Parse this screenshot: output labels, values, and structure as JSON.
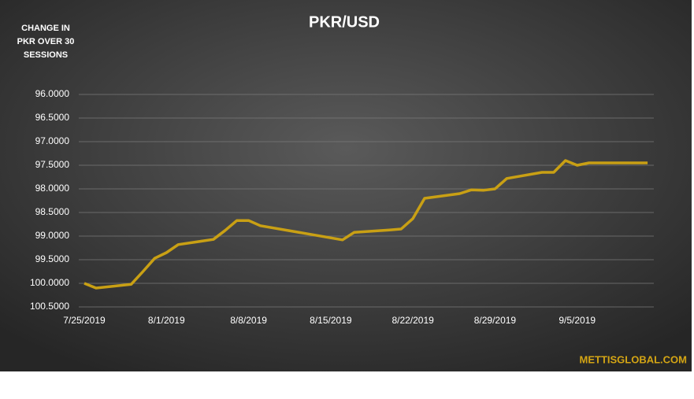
{
  "chart_data": {
    "type": "line",
    "title": "PKR/USD",
    "ylabel_lines": [
      "CHANGE IN",
      "PKR OVER 30",
      "SESSIONS"
    ],
    "credit": "METTISGLOBAL.COM",
    "x": [
      "7/25/2019",
      "7/26/2019",
      "7/29/2019",
      "7/30/2019",
      "7/31/2019",
      "8/1/2019",
      "8/2/2019",
      "8/5/2019",
      "8/6/2019",
      "8/7/2019",
      "8/8/2019",
      "8/9/2019",
      "8/16/2019",
      "8/17/2019",
      "8/20/2019",
      "8/21/2019",
      "8/22/2019",
      "8/23/2019",
      "8/26/2019",
      "8/27/2019",
      "8/28/2019",
      "8/29/2019",
      "8/30/2019",
      "9/2/2019",
      "9/3/2019",
      "9/4/2019",
      "9/5/2019",
      "9/6/2019",
      "9/9/2019",
      "9/10/2019",
      "9/11/2019"
    ],
    "series": [
      {
        "name": "PKR/USD",
        "color": "#c9a014",
        "values": [
          100.0,
          100.1,
          100.02,
          99.75,
          99.47,
          99.35,
          99.18,
          99.07,
          98.88,
          98.67,
          98.67,
          98.78,
          99.08,
          98.92,
          98.87,
          98.85,
          98.63,
          98.2,
          98.1,
          98.02,
          98.03,
          98.0,
          97.78,
          97.65,
          97.65,
          97.4,
          97.5,
          97.45,
          97.45,
          97.45,
          97.45
        ]
      }
    ],
    "xlim": [
      "7/25/2019",
      "9/12/2019"
    ],
    "xticks": [
      "7/25/2019",
      "8/1/2019",
      "8/8/2019",
      "8/15/2019",
      "8/22/2019",
      "8/29/2019",
      "9/5/2019"
    ],
    "ylim": [
      96,
      100.5
    ],
    "y_inverted": true,
    "yticks": [
      {
        "value": 96,
        "label": "96.0000"
      },
      {
        "value": 96.5,
        "label": "96.5000"
      },
      {
        "value": 97,
        "label": "97.0000"
      },
      {
        "value": 97.5,
        "label": "97.5000"
      },
      {
        "value": 98,
        "label": "98.0000"
      },
      {
        "value": 98.5,
        "label": "98.5000"
      },
      {
        "value": 99,
        "label": "99.0000"
      },
      {
        "value": 99.5,
        "label": "99.5000"
      },
      {
        "value": 100,
        "label": "100.0000"
      },
      {
        "value": 100.5,
        "label": "100.5000"
      }
    ],
    "grid": true
  }
}
